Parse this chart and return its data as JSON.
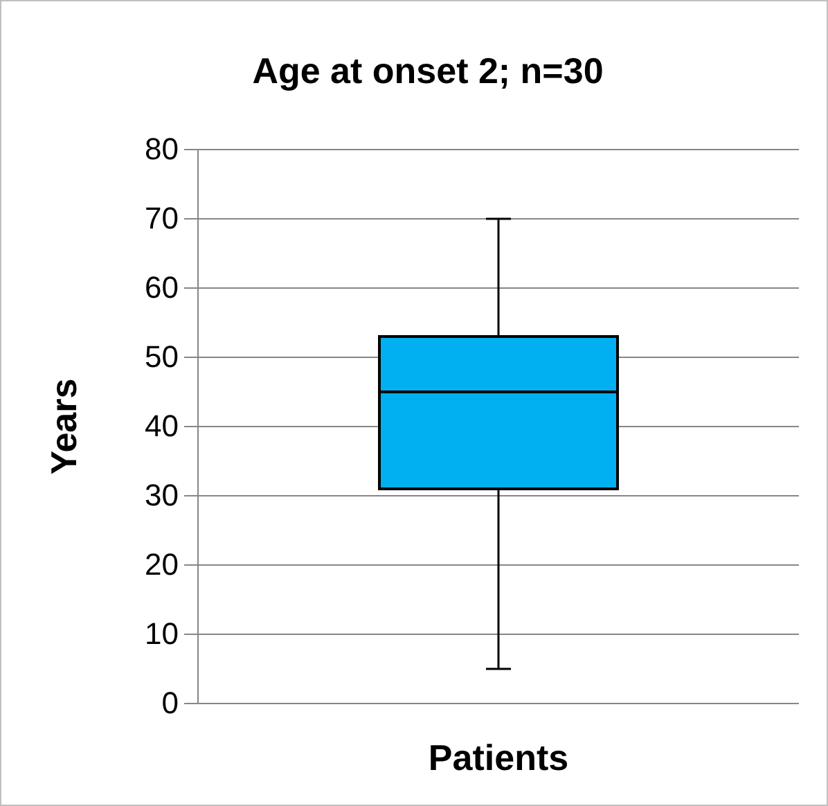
{
  "chart_data": {
    "type": "box",
    "title": "Age at onset 2; n=30",
    "xlabel": "Patients",
    "ylabel": "Years",
    "categories": [
      null
    ],
    "series": [
      {
        "color": "#00b0f0",
        "boxes": [
          {
            "low": 5,
            "q1": 31,
            "median": 45,
            "q3": 53,
            "high": 70
          }
        ]
      }
    ],
    "ylim": [
      0,
      80
    ],
    "yticks": [
      0,
      10,
      20,
      30,
      40,
      50,
      60,
      70,
      80
    ],
    "grid": "y"
  }
}
